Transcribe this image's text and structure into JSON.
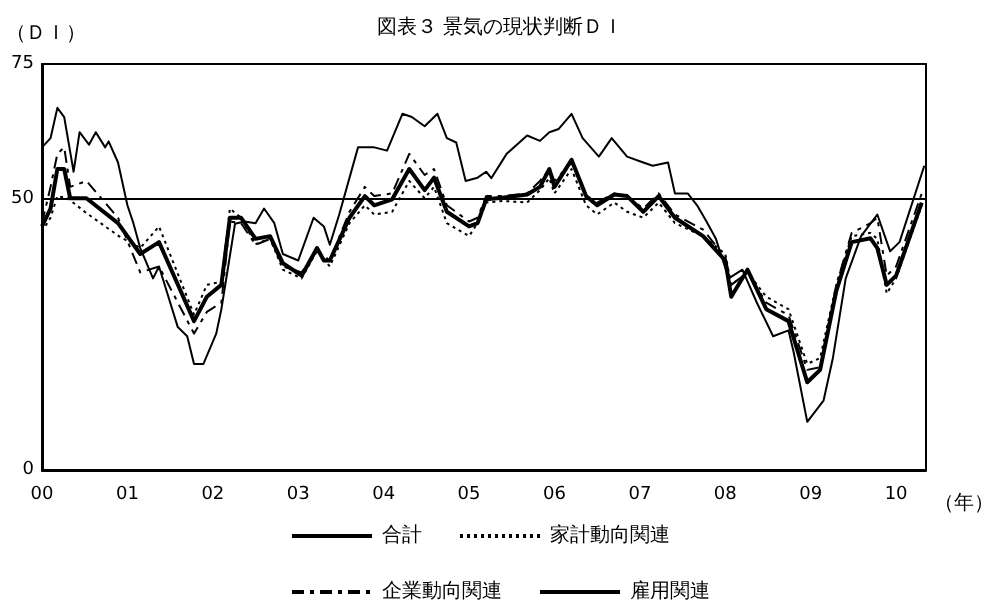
{
  "chart_data": {
    "type": "line",
    "title": "図表３ 景気の現状判断ＤＩ",
    "ylabel": "（ＤＩ）",
    "xlabel": "（年）",
    "xlim": [
      2000,
      2010.35
    ],
    "xticks": [
      {
        "value": 2000,
        "label": "00"
      },
      {
        "value": 2001,
        "label": "01"
      },
      {
        "value": 2002,
        "label": "02"
      },
      {
        "value": 2003,
        "label": "03"
      },
      {
        "value": 2004,
        "label": "04"
      },
      {
        "value": 2005,
        "label": "05"
      },
      {
        "value": 2006,
        "label": "06"
      },
      {
        "value": 2007,
        "label": "07"
      },
      {
        "value": 2008,
        "label": "08"
      },
      {
        "value": 2009,
        "label": "09"
      },
      {
        "value": 2010,
        "label": "10"
      }
    ],
    "ylim": [
      0,
      75
    ],
    "yticks": [
      0,
      50,
      75
    ],
    "grid": false,
    "legend": "bottom",
    "marker": "none",
    "ref_lines": [
      {
        "axis": "y",
        "value": 50,
        "color": "#000000",
        "line_style": "solid"
      }
    ],
    "series": [
      {
        "name": "合計",
        "color": "#000000",
        "line_style": "solid",
        "x": [
          2000.0,
          2000.1,
          2000.18,
          2000.26,
          2000.33,
          2000.52,
          2000.89,
          2001.15,
          2001.37,
          2001.78,
          2001.93,
          2002.1,
          2002.2,
          2002.33,
          2002.5,
          2002.67,
          2002.82,
          2003.04,
          2003.22,
          2003.3,
          2003.37,
          2003.6,
          2003.78,
          2003.89,
          2004.1,
          2004.3,
          2004.48,
          2004.59,
          2004.74,
          2005.0,
          2005.1,
          2005.2,
          2005.39,
          2005.68,
          2005.83,
          2005.94,
          2006.0,
          2006.2,
          2006.37,
          2006.5,
          2006.7,
          2006.85,
          2007.04,
          2007.22,
          2007.41,
          2007.74,
          2008.0,
          2008.07,
          2008.26,
          2008.48,
          2008.74,
          2008.96,
          2009.11,
          2009.3,
          2009.48,
          2009.7,
          2009.78,
          2009.89,
          2010.0,
          2010.3
        ],
        "values": [
          45,
          48.3,
          55.6,
          55.6,
          50.2,
          50.2,
          45.6,
          39.9,
          42.1,
          27.5,
          32,
          34.2,
          46.6,
          46.6,
          42.7,
          43.2,
          38.2,
          35.9,
          41,
          38.7,
          38.7,
          46.6,
          50.6,
          48.9,
          50,
          55.6,
          51.7,
          54,
          47.7,
          45,
          45.6,
          50,
          50.3,
          50.9,
          52.3,
          55.6,
          52.3,
          57.3,
          50.6,
          48.9,
          50.9,
          50.6,
          47.7,
          50.6,
          46.6,
          43.2,
          38.7,
          32,
          37,
          29.7,
          27.5,
          16.2,
          18.5,
          33.1,
          42.1,
          42.8,
          41,
          34.2,
          35.9,
          49.4
        ]
      },
      {
        "name": "家計動向関連",
        "color": "#000000",
        "line_style": "dotted",
        "x": [
          2000.0,
          2000.1,
          2000.18,
          2000.3,
          2000.5,
          2000.9,
          2001.15,
          2001.37,
          2001.78,
          2001.93,
          2002.1,
          2002.2,
          2002.33,
          2002.5,
          2002.67,
          2002.82,
          2003.04,
          2003.22,
          2003.37,
          2003.6,
          2003.78,
          2003.89,
          2004.1,
          2004.3,
          2004.48,
          2004.59,
          2004.74,
          2005.0,
          2005.1,
          2005.2,
          2005.4,
          2005.68,
          2005.83,
          2005.94,
          2006.0,
          2006.2,
          2006.37,
          2006.5,
          2006.7,
          2006.85,
          2007.04,
          2007.22,
          2007.41,
          2007.74,
          2008.0,
          2008.07,
          2008.26,
          2008.48,
          2008.74,
          2008.96,
          2009.11,
          2009.3,
          2009.48,
          2009.7,
          2009.78,
          2009.89,
          2010.0,
          2010.3
        ],
        "values": [
          44,
          46.6,
          50.6,
          50.2,
          47.7,
          43.2,
          41,
          45,
          28.7,
          34.2,
          34.8,
          48.3,
          46.6,
          41.7,
          42.8,
          37,
          35.4,
          40.5,
          37.6,
          45.6,
          48.9,
          47.2,
          47.7,
          53.4,
          50.2,
          52.3,
          45.6,
          43.2,
          45.6,
          49.4,
          49.7,
          49.4,
          51.7,
          53.9,
          51.1,
          55.6,
          48.9,
          47.2,
          49.4,
          47.7,
          46.6,
          49.4,
          45.6,
          43.2,
          39.9,
          34.2,
          36.5,
          32,
          29.7,
          19.6,
          20.7,
          34.2,
          43.2,
          43.8,
          42.7,
          32.6,
          35.4,
          48.9
        ]
      },
      {
        "name": "企業動向関連",
        "color": "#000000",
        "line_style": "dashdot",
        "x": [
          2000.0,
          2000.1,
          2000.18,
          2000.26,
          2000.33,
          2000.52,
          2000.89,
          2001.15,
          2001.37,
          2001.78,
          2001.93,
          2002.1,
          2002.2,
          2002.33,
          2002.5,
          2002.67,
          2002.82,
          2003.04,
          2003.22,
          2003.37,
          2003.6,
          2003.78,
          2003.89,
          2004.1,
          2004.3,
          2004.48,
          2004.59,
          2004.74,
          2005.0,
          2005.1,
          2005.2,
          2005.4,
          2005.68,
          2005.83,
          2005.94,
          2006.0,
          2006.2,
          2006.37,
          2006.5,
          2006.7,
          2006.85,
          2007.04,
          2007.22,
          2007.41,
          2007.74,
          2008.0,
          2008.07,
          2008.26,
          2008.48,
          2008.74,
          2008.96,
          2009.11,
          2009.3,
          2009.48,
          2009.7,
          2009.78,
          2009.89,
          2010.0,
          2010.3
        ],
        "values": [
          45.6,
          52.3,
          58.4,
          59.6,
          52.3,
          53.4,
          46.6,
          36.5,
          37.6,
          25.2,
          29.2,
          30.9,
          45.9,
          45.6,
          41.6,
          42.7,
          37.6,
          36.5,
          40.5,
          38.7,
          47.7,
          52.3,
          50.6,
          51.1,
          58.4,
          54.5,
          55.6,
          48.9,
          45.9,
          46.6,
          50.6,
          50.6,
          51.1,
          53.4,
          55.6,
          53.4,
          56.8,
          50.6,
          49.4,
          51.1,
          50.6,
          48.3,
          51.1,
          47.2,
          44.4,
          39.3,
          34.2,
          36.5,
          30.9,
          28.6,
          18.5,
          19,
          34.2,
          43.8,
          45.6,
          46.6,
          35.9,
          37.6,
          51.1
        ]
      },
      {
        "name": "雇用関連",
        "color": "#000000",
        "line_style": "solid",
        "x": [
          2000.0,
          2000.1,
          2000.18,
          2000.26,
          2000.37,
          2000.44,
          2000.55,
          2000.63,
          2000.74,
          2000.78,
          2000.89,
          2001.0,
          2001.07,
          2001.15,
          2001.3,
          2001.37,
          2001.59,
          2001.7,
          2001.78,
          2001.89,
          2002.04,
          2002.1,
          2002.26,
          2002.37,
          2002.5,
          2002.6,
          2002.72,
          2002.82,
          2003.0,
          2003.18,
          2003.3,
          2003.37,
          2003.48,
          2003.7,
          2003.89,
          2004.04,
          2004.22,
          2004.33,
          2004.48,
          2004.63,
          2004.74,
          2004.85,
          2004.96,
          2005.1,
          2005.2,
          2005.26,
          2005.44,
          2005.68,
          2005.83,
          2005.94,
          2006.05,
          2006.2,
          2006.33,
          2006.52,
          2006.67,
          2006.85,
          2007.04,
          2007.15,
          2007.33,
          2007.41,
          2007.56,
          2007.67,
          2007.78,
          2007.89,
          2008.04,
          2008.2,
          2008.37,
          2008.56,
          2008.74,
          2008.8,
          2008.96,
          2009.15,
          2009.26,
          2009.41,
          2009.59,
          2009.78,
          2009.93,
          2010.04,
          2010.33
        ],
        "values": [
          59.6,
          61.3,
          66.9,
          65.2,
          55.1,
          62.4,
          60.1,
          62.4,
          59.6,
          60.7,
          56.8,
          48.9,
          45.6,
          41,
          35.4,
          37.6,
          26.4,
          24.7,
          19.6,
          19.6,
          25.2,
          29.7,
          45.5,
          45.9,
          45.6,
          48.3,
          45.6,
          39.9,
          38.7,
          46.6,
          45,
          41.6,
          47.2,
          59.6,
          59.6,
          59,
          65.8,
          65.2,
          63.5,
          65.8,
          61.3,
          60.5,
          53.4,
          54,
          55.1,
          53.9,
          58.4,
          61.8,
          60.8,
          62.4,
          63,
          65.8,
          61.3,
          57.9,
          61.3,
          57.9,
          56.8,
          56.2,
          56.8,
          51.1,
          51.1,
          48.9,
          45.9,
          42.7,
          35.4,
          37,
          30.9,
          24.7,
          25.8,
          21.8,
          8.9,
          12.8,
          20.7,
          35.4,
          43.2,
          47.2,
          40.4,
          42.1,
          56.2
        ]
      }
    ]
  }
}
